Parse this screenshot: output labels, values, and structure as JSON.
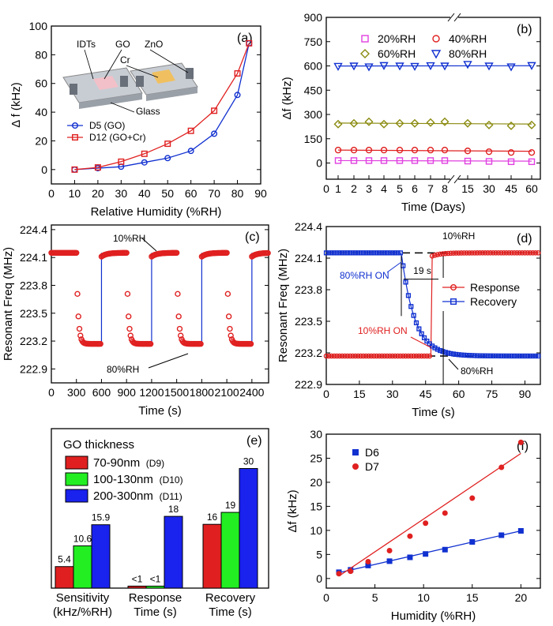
{
  "colors": {
    "red": "#e02020",
    "blue": "#1030d0",
    "magenta": "#e040e0",
    "olive": "#8a8a10",
    "green": "#22ee22",
    "barblue": "#1a22ee"
  },
  "chart_data": [
    {
      "panel_tag": "(a)",
      "type": "line",
      "xlabel": "Relative Humidity (%RH)",
      "ylabel": "Δ f (kHz)",
      "xlim": [
        0,
        90
      ],
      "ylim": [
        -10,
        100
      ],
      "xticks": [
        "0",
        "10",
        "20",
        "30",
        "40",
        "50",
        "60",
        "70",
        "80",
        "90"
      ],
      "yticks": [
        "0",
        "20",
        "40",
        "60",
        "80",
        "100"
      ],
      "diagram_labels": [
        "IDTs",
        "GO",
        "ZnO",
        "Cr",
        "Glass"
      ],
      "series": [
        {
          "name": "D5   (GO)",
          "marker": "circle",
          "color": "blue",
          "x": [
            10,
            20,
            30,
            40,
            50,
            60,
            70,
            80,
            85
          ],
          "y": [
            0,
            1,
            2,
            5,
            8,
            13,
            25,
            52,
            88
          ]
        },
        {
          "name": "D12 (GO+Cr)",
          "marker": "square",
          "color": "red",
          "x": [
            10,
            20,
            30,
            40,
            50,
            60,
            70,
            80,
            85
          ],
          "y": [
            0,
            1.5,
            5.5,
            11,
            18,
            27,
            41,
            67,
            88
          ]
        }
      ]
    },
    {
      "panel_tag": "(b)",
      "type": "scatter",
      "xlabel": "Time (Days)",
      "ylabel": "Δf (kHz)",
      "ylim": [
        -100,
        900
      ],
      "xticks": [
        "0",
        "1",
        "2",
        "3",
        "4",
        "5",
        "6",
        "7",
        "8",
        "15",
        "30",
        "45",
        "60"
      ],
      "yticks": [
        "0",
        "150",
        "300",
        "450",
        "600",
        "750",
        "900"
      ],
      "x": [
        1,
        2,
        3,
        4,
        5,
        6,
        7,
        8,
        15,
        30,
        45,
        60
      ],
      "series": [
        {
          "name": "20%RH",
          "marker": "square",
          "color": "magenta",
          "y": [
            15,
            15,
            15,
            15,
            15,
            15,
            15,
            15,
            12,
            10,
            8,
            8
          ]
        },
        {
          "name": "40%RH",
          "marker": "circle",
          "color": "red",
          "y": [
            80,
            80,
            80,
            80,
            80,
            80,
            80,
            80,
            75,
            70,
            65,
            65
          ]
        },
        {
          "name": "60%RH",
          "marker": "diamond",
          "color": "olive",
          "y": [
            240,
            245,
            255,
            240,
            245,
            245,
            250,
            255,
            245,
            235,
            230,
            235
          ]
        },
        {
          "name": "80%RH",
          "marker": "triangle-down",
          "color": "blue",
          "y": [
            598,
            600,
            595,
            603,
            600,
            598,
            602,
            600,
            610,
            600,
            595,
            603
          ]
        }
      ]
    },
    {
      "panel_tag": "(c)",
      "type": "line",
      "xlabel": "Time (s)",
      "ylabel": "Resonant Freq (MHz)",
      "xlim": [
        0,
        2600
      ],
      "ylim": [
        222.75,
        224.45
      ],
      "xticks": [
        "0",
        "300",
        "600",
        "900",
        "1200",
        "1500",
        "1800",
        "2100",
        "2400"
      ],
      "yticks": [
        "222.9",
        "223.2",
        "223.5",
        "223.8",
        "224.1",
        "224.4"
      ],
      "annotations": [
        "10%RH",
        "80%RH"
      ],
      "high": 224.15,
      "low": 223.17,
      "switch_to_high": [
        600,
        1200,
        1800,
        2400
      ],
      "switch_to_low": [
        300,
        900,
        1500,
        2100
      ]
    },
    {
      "panel_tag": "(d)",
      "type": "line",
      "xlabel": "Time (s)",
      "ylabel": "Resonant Freq (MHz)",
      "xlim": [
        0,
        97
      ],
      "ylim": [
        222.9,
        224.4
      ],
      "xticks": [
        "0",
        "15",
        "30",
        "45",
        "60",
        "75",
        "90"
      ],
      "yticks": [
        "222.9",
        "223.2",
        "223.5",
        "223.8",
        "224.1",
        "224.4"
      ],
      "annotations": {
        "top": "10%RH",
        "bottom": "80%RH",
        "on_80": "80%RH ON",
        "on_10": "10%RH ON",
        "interval": "19 s"
      },
      "series": [
        {
          "name": "Response",
          "marker": "circle",
          "color": "red",
          "low": 223.17,
          "high": 224.15,
          "switch": 48
        },
        {
          "name": "Recovery",
          "marker": "square",
          "color": "blue",
          "low": 223.17,
          "high": 224.15,
          "switch": 34
        }
      ]
    },
    {
      "panel_tag": "(e)",
      "type": "bar",
      "legend_title": "GO thickness",
      "legend": [
        {
          "label": "70-90nm",
          "sub": "(D9)",
          "color": "red"
        },
        {
          "label": "100-130nm",
          "sub": "(D10)",
          "color": "green"
        },
        {
          "label": "200-300nm",
          "sub": "(D11)",
          "color": "barblue"
        }
      ],
      "categories": [
        [
          "Sensitivity",
          "(kHz/%RH)"
        ],
        [
          "Response",
          "Time (s)"
        ],
        [
          "Recovery",
          "Time (s)"
        ]
      ],
      "values": [
        [
          5.4,
          10.6,
          15.9
        ],
        [
          0.5,
          0.5,
          18
        ],
        [
          16,
          19,
          30
        ]
      ],
      "value_labels": [
        [
          "5.4",
          "10.6",
          "15.9"
        ],
        [
          "<1",
          "<1",
          "18"
        ],
        [
          "16",
          "19",
          "30"
        ]
      ],
      "ylim": [
        0,
        40
      ]
    },
    {
      "panel_tag": "(f)",
      "type": "scatter",
      "xlabel": "Humidity (%RH)",
      "ylabel": "Δf (kHz)",
      "xlim": [
        0,
        22
      ],
      "ylim": [
        -2,
        30
      ],
      "xticks": [
        "0",
        "5",
        "10",
        "15",
        "20"
      ],
      "yticks": [
        "0",
        "5",
        "10",
        "15",
        "20",
        "25",
        "30"
      ],
      "series": [
        {
          "name": "D6",
          "marker": "square",
          "color": "blue",
          "x": [
            1.3,
            2.5,
            4.3,
            6.5,
            8.6,
            10.2,
            12.2,
            15,
            18,
            20
          ],
          "y": [
            1.3,
            1.8,
            2.7,
            3.6,
            4.4,
            5.1,
            6,
            7.6,
            9,
            9.9
          ],
          "fit": [
            [
              1.3,
              1.2
            ],
            [
              20,
              9.9
            ]
          ]
        },
        {
          "name": "D7",
          "marker": "circle",
          "color": "red",
          "x": [
            1.3,
            2.5,
            4.3,
            6.5,
            8.6,
            10.2,
            12.2,
            15,
            18,
            20
          ],
          "y": [
            1.0,
            1.5,
            3.5,
            5.8,
            8.8,
            11.5,
            13.6,
            16.7,
            23.1,
            28.3
          ],
          "fit": [
            [
              1.3,
              0.5
            ],
            [
              20,
              26
            ]
          ]
        }
      ]
    }
  ]
}
